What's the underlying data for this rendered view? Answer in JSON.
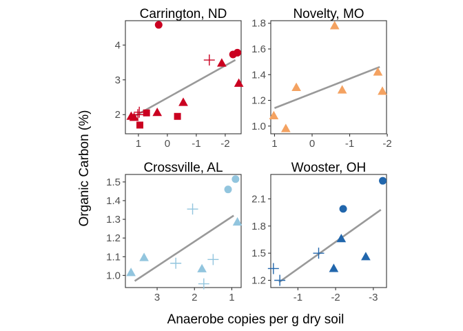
{
  "ylabel": "Organic Carbon (%)",
  "xlabel": "Anaerobe copies per g dry soil",
  "colors": {
    "Carrington, ND": "#ca0020",
    "Novelty, MO": "#f4a261",
    "Crossville, AL": "#92c5de",
    "Wooster, OH": "#2166ac",
    "fit_line": "#999999"
  },
  "chart_data": [
    {
      "type": "scatter",
      "title": "Carrington, ND",
      "color": "#ca0020",
      "x_reversed": true,
      "xlim": [
        1.45,
        -2.55
      ],
      "ylim": [
        1.45,
        4.7
      ],
      "x_ticks": [
        {
          "v": 1,
          "label": "1"
        },
        {
          "v": 0,
          "label": "0"
        },
        {
          "v": -1,
          "label": "-1"
        },
        {
          "v": -2,
          "label": "-2"
        }
      ],
      "y_ticks": [
        {
          "v": 2,
          "label": "2"
        },
        {
          "v": 3,
          "label": "3"
        },
        {
          "v": 4,
          "label": "4"
        }
      ],
      "points": [
        {
          "x": 1.25,
          "y": 1.95,
          "shape": "triangle"
        },
        {
          "x": 1.15,
          "y": 1.92,
          "shape": "triangle"
        },
        {
          "x": 1.02,
          "y": 2.0,
          "shape": "cross"
        },
        {
          "x": 0.97,
          "y": 2.07,
          "shape": "cross"
        },
        {
          "x": 0.95,
          "y": 1.7,
          "shape": "square"
        },
        {
          "x": 0.72,
          "y": 2.05,
          "shape": "square"
        },
        {
          "x": 0.35,
          "y": 2.06,
          "shape": "triangle"
        },
        {
          "x": 0.3,
          "y": 4.58,
          "shape": "circle"
        },
        {
          "x": -0.35,
          "y": 1.95,
          "shape": "square"
        },
        {
          "x": -0.55,
          "y": 2.35,
          "shape": "triangle"
        },
        {
          "x": -1.45,
          "y": 3.57,
          "shape": "cross"
        },
        {
          "x": -1.88,
          "y": 3.48,
          "shape": "triangle"
        },
        {
          "x": -2.27,
          "y": 3.73,
          "shape": "circle"
        },
        {
          "x": -2.42,
          "y": 3.78,
          "shape": "circle"
        },
        {
          "x": -2.47,
          "y": 2.9,
          "shape": "triangle"
        }
      ],
      "fit": {
        "x": [
          1.3,
          -2.35
        ],
        "y": [
          1.88,
          3.57
        ]
      }
    },
    {
      "type": "scatter",
      "title": "Novelty, MO",
      "color": "#f4a261",
      "x_reversed": true,
      "xlim": [
        1.1,
        -1.98
      ],
      "ylim": [
        0.94,
        1.82
      ],
      "x_ticks": [
        {
          "v": 1,
          "label": "1"
        },
        {
          "v": 0,
          "label": "0"
        },
        {
          "v": -1,
          "label": "-1"
        },
        {
          "v": -2,
          "label": "-2"
        }
      ],
      "y_ticks": [
        {
          "v": 1.0,
          "label": "1.0"
        },
        {
          "v": 1.2,
          "label": "1.2"
        },
        {
          "v": 1.4,
          "label": "1.4"
        },
        {
          "v": 1.6,
          "label": "1.6"
        },
        {
          "v": 1.8,
          "label": "1.8"
        }
      ],
      "points": [
        {
          "x": 1.02,
          "y": 1.08,
          "shape": "triangle"
        },
        {
          "x": 0.7,
          "y": 0.98,
          "shape": "triangle"
        },
        {
          "x": 0.42,
          "y": 1.3,
          "shape": "triangle"
        },
        {
          "x": -0.6,
          "y": 1.78,
          "shape": "triangle"
        },
        {
          "x": -0.8,
          "y": 1.28,
          "shape": "triangle"
        },
        {
          "x": -1.75,
          "y": 1.42,
          "shape": "triangle"
        },
        {
          "x": -1.87,
          "y": 1.27,
          "shape": "triangle"
        }
      ],
      "fit": {
        "x": [
          1.0,
          -1.8
        ],
        "y": [
          1.14,
          1.46
        ]
      }
    },
    {
      "type": "scatter",
      "title": "Crossville, AL",
      "color": "#92c5de",
      "x_reversed": true,
      "xlim": [
        3.85,
        0.75
      ],
      "ylim": [
        0.935,
        1.54
      ],
      "x_ticks": [
        {
          "v": 3,
          "label": "3"
        },
        {
          "v": 2,
          "label": "2"
        },
        {
          "v": 1,
          "label": "1"
        }
      ],
      "y_ticks": [
        {
          "v": 1.0,
          "label": "1.0"
        },
        {
          "v": 1.1,
          "label": "1.1"
        },
        {
          "v": 1.2,
          "label": "1.2"
        },
        {
          "v": 1.3,
          "label": "1.3"
        },
        {
          "v": 1.4,
          "label": "1.4"
        },
        {
          "v": 1.5,
          "label": "1.5"
        }
      ],
      "points": [
        {
          "x": 3.7,
          "y": 1.015,
          "shape": "triangle"
        },
        {
          "x": 3.35,
          "y": 1.095,
          "shape": "triangle"
        },
        {
          "x": 2.5,
          "y": 1.065,
          "shape": "cross"
        },
        {
          "x": 2.05,
          "y": 1.355,
          "shape": "cross"
        },
        {
          "x": 1.8,
          "y": 1.035,
          "shape": "triangle"
        },
        {
          "x": 1.75,
          "y": 0.955,
          "shape": "cross"
        },
        {
          "x": 1.5,
          "y": 1.085,
          "shape": "cross"
        },
        {
          "x": 1.1,
          "y": 1.46,
          "shape": "circle"
        },
        {
          "x": 0.9,
          "y": 1.515,
          "shape": "circle"
        },
        {
          "x": 0.85,
          "y": 1.285,
          "shape": "triangle"
        }
      ],
      "fit": {
        "x": [
          3.6,
          0.95
        ],
        "y": [
          0.97,
          1.32
        ]
      }
    },
    {
      "type": "scatter",
      "title": "Wooster, OH",
      "color": "#2166ac",
      "x_reversed": true,
      "xlim": [
        -0.28,
        -3.35
      ],
      "ylim": [
        1.12,
        2.37
      ],
      "x_ticks": [
        {
          "v": -1,
          "label": "-1"
        },
        {
          "v": -2,
          "label": "-2"
        },
        {
          "v": -3,
          "label": "-3"
        }
      ],
      "y_ticks": [
        {
          "v": 1.2,
          "label": "1.2"
        },
        {
          "v": 1.5,
          "label": "1.5"
        },
        {
          "v": 1.8,
          "label": "1.8"
        },
        {
          "v": 2.1,
          "label": "2.1"
        }
      ],
      "points": [
        {
          "x": -0.35,
          "y": 1.33,
          "shape": "cross"
        },
        {
          "x": -0.52,
          "y": 1.2,
          "shape": "cross"
        },
        {
          "x": -1.55,
          "y": 1.5,
          "shape": "cross"
        },
        {
          "x": -1.95,
          "y": 1.33,
          "shape": "triangle"
        },
        {
          "x": -2.15,
          "y": 1.66,
          "shape": "triangle"
        },
        {
          "x": -2.2,
          "y": 1.99,
          "shape": "circle"
        },
        {
          "x": -2.8,
          "y": 1.46,
          "shape": "triangle"
        },
        {
          "x": -3.25,
          "y": 2.3,
          "shape": "circle"
        }
      ],
      "fit": {
        "x": [
          -0.5,
          -3.2
        ],
        "y": [
          1.18,
          1.98
        ]
      }
    }
  ]
}
